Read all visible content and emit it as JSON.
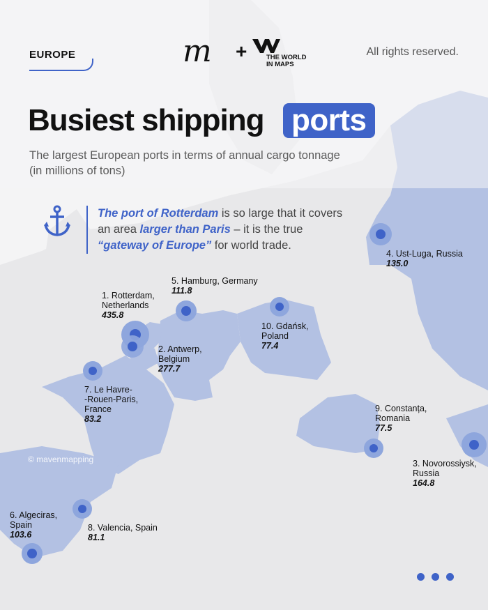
{
  "header": {
    "region": "EUROPE",
    "brand_m": "m",
    "plus": "+",
    "wim_line1": "THE WORLD",
    "wim_line2": "IN MAPS",
    "rights": "All rights reserved."
  },
  "title": {
    "main": "Busiest shipping",
    "highlight": "ports"
  },
  "subtitle": "The largest European ports in terms of annual cargo tonnage\n(in millions of tons)",
  "note": {
    "part1": "The port of Rotterdam",
    "part2": " is so large that it covers an area ",
    "part3": "larger than Paris",
    "part4": " – it is the true ",
    "part5": "“gateway of Europe”",
    "part6": " for world trade."
  },
  "watermark": "© mavenmapping",
  "colors": {
    "accent": "#3f63c8",
    "land_highlight": "#b3c1e3",
    "land_base": "#e8e8ea",
    "bubble": "#8ea6dd"
  },
  "ports": [
    {
      "rank": "1.",
      "name": "Rotterdam,\nNetherlands",
      "value": "435.8"
    },
    {
      "rank": "2.",
      "name": "Antwerp,\nBelgium",
      "value": "277.7"
    },
    {
      "rank": "3.",
      "name": "Novorossiysk,\nRussia",
      "value": "164.8"
    },
    {
      "rank": "4.",
      "name": "Ust-Luga, Russia",
      "value": "135.0"
    },
    {
      "rank": "5.",
      "name": "Hamburg, Germany",
      "value": "111.8"
    },
    {
      "rank": "6.",
      "name": "Algeciras,\nSpain",
      "value": "103.6"
    },
    {
      "rank": "7.",
      "name": "Le Havre-\n-Rouen-Paris,\nFrance",
      "value": "83.2"
    },
    {
      "rank": "8.",
      "name": "Valencia, Spain",
      "value": "81.1"
    },
    {
      "rank": "9.",
      "name": "Constanța,\nRomania",
      "value": "77.5"
    },
    {
      "rank": "10.",
      "name": "Gdańsk,\nPoland",
      "value": "77.4"
    }
  ]
}
